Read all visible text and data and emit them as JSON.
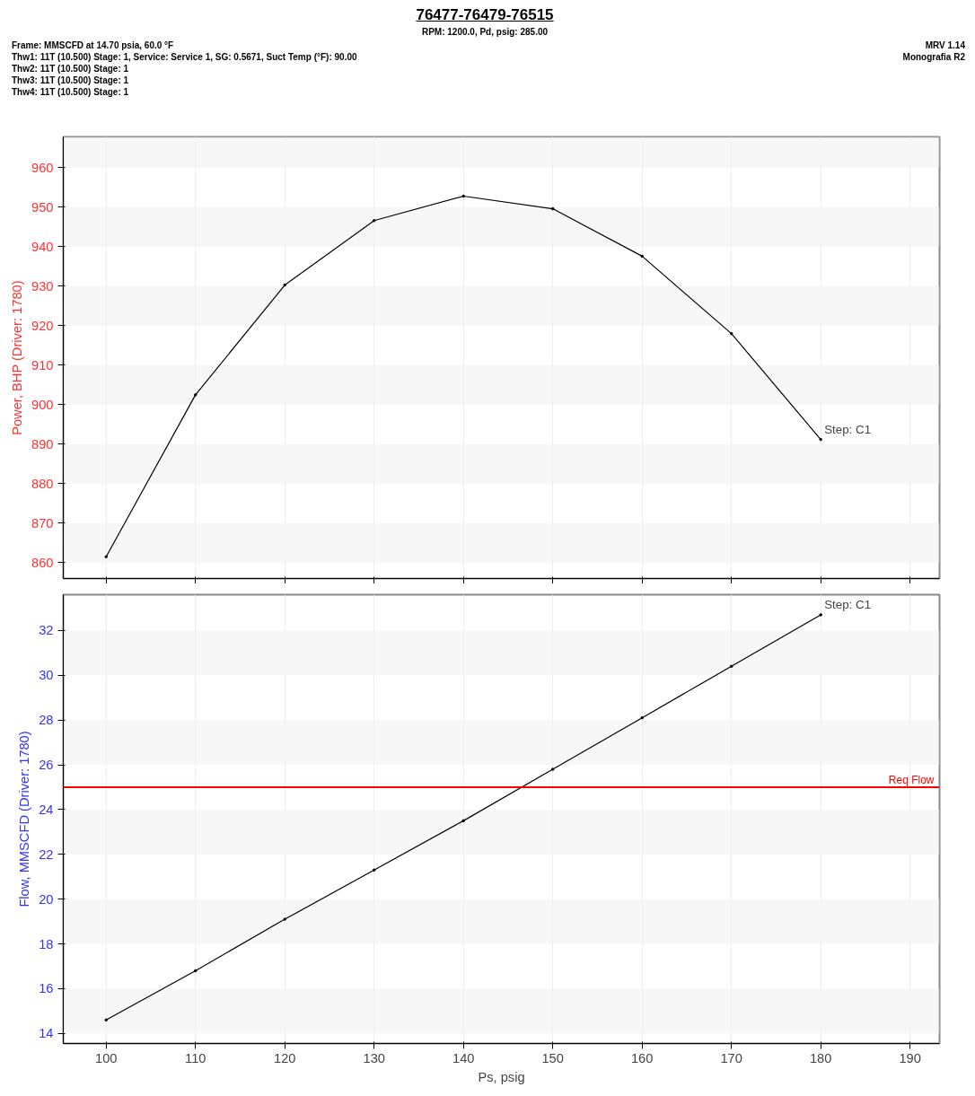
{
  "chart_data": [
    {
      "type": "line",
      "title": "76477-76479-76515",
      "subtitle": "RPM: 1200.0,  Pd, psig: 285.00",
      "annotations": [
        "Frame: MMSCFD at 14.70 psia, 60.0 °F",
        "Thw1: 11T (10.500)   Stage: 1, Service: Service 1, SG: 0.5671,  Suct Temp (°F): 90.00",
        "Thw2: 11T (10.500)   Stage: 1",
        "Thw3: 11T (10.500)   Stage: 1",
        "Thw4: 11T (10.500)   Stage: 1",
        "MRV 1.14",
        "Monografia  R2",
        {
          "text": "Step: C1",
          "x": 180,
          "y": 891.2
        }
      ],
      "ylabel": "Power, BHP (Driver: 1780)",
      "x": [
        100,
        110,
        120,
        130,
        140,
        150,
        160,
        170,
        180
      ],
      "series": [
        {
          "color": "#000000",
          "values": [
            861.5,
            902.5,
            930.3,
            946.6,
            952.8,
            949.6,
            937.6,
            918.0,
            891.2
          ]
        }
      ],
      "xlim": [
        95.2,
        193.3
      ],
      "xticks": [
        100,
        110,
        120,
        130,
        140,
        150,
        160,
        170,
        180,
        190
      ],
      "ylim": [
        856,
        967.8
      ],
      "yticks": [
        860,
        870,
        880,
        890,
        900,
        910,
        920,
        930,
        940,
        950,
        960
      ],
      "tick_labels": "y",
      "grid": true,
      "marker": "circle",
      "line_style": "solid"
    },
    {
      "type": "line",
      "xlabel": "Ps, psig",
      "ylabel": "Flow, MMSCFD (Driver: 1780)",
      "annotations": [
        {
          "text": "Step: C1",
          "x": 180,
          "y": 32.7
        }
      ],
      "x": [
        100,
        110,
        120,
        130,
        140,
        150,
        160,
        170,
        180
      ],
      "series": [
        {
          "color": "#000000",
          "values": [
            14.6,
            16.8,
            19.1,
            21.3,
            23.5,
            25.8,
            28.1,
            30.4,
            32.7
          ]
        }
      ],
      "ref_lines": [
        {
          "axis": "y",
          "value": 25,
          "label": "Req Flow",
          "color": "#ff0000"
        }
      ],
      "xlim": [
        95.2,
        193.3
      ],
      "xticks": [
        100,
        110,
        120,
        130,
        140,
        150,
        160,
        170,
        180,
        190
      ],
      "ylim": [
        13.55,
        33.6
      ],
      "yticks": [
        14,
        16,
        18,
        20,
        22,
        24,
        26,
        28,
        30,
        32
      ],
      "grid": true,
      "marker": "circle",
      "line_style": "solid"
    }
  ]
}
